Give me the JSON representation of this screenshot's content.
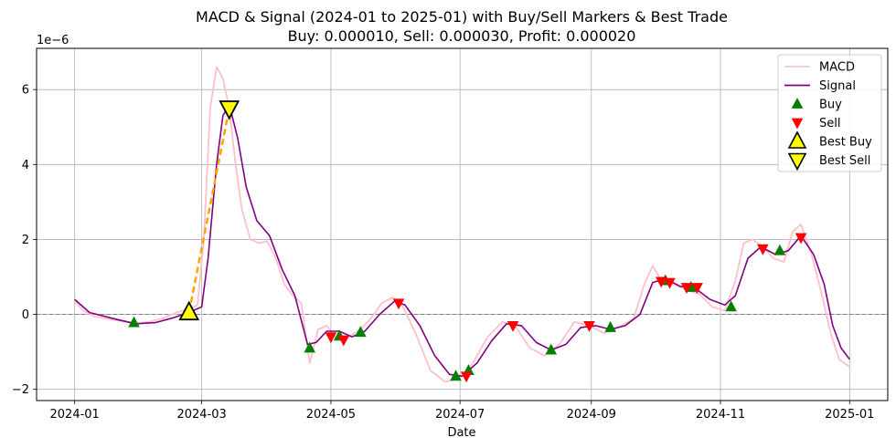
{
  "chart_data": {
    "type": "line",
    "title": "MACD & Signal (2024-01 to 2025-01) with Buy/Sell Markers & Best Trade",
    "subtitle": "Buy: 0.000010, Sell: 0.000030, Profit: 0.000020",
    "xlabel": "Date",
    "ylabel": "",
    "y_multiplier_label": "1e−6",
    "x_tick_labels": [
      "2024-01",
      "2024-03",
      "2024-05",
      "2024-07",
      "2024-09",
      "2024-11",
      "2025-01"
    ],
    "x_tick_dates": [
      "2024-01-01",
      "2024-03-01",
      "2024-05-01",
      "2024-07-01",
      "2024-09-01",
      "2024-11-01",
      "2025-01-01"
    ],
    "y_ticks": [
      -2,
      0,
      2,
      4,
      6
    ],
    "y_tick_labels": [
      "−2",
      "0",
      "2",
      "4",
      "6"
    ],
    "xlim": [
      "2023-12-14",
      "2025-01-19"
    ],
    "ylim": [
      -2.3,
      7.1
    ],
    "grid": true,
    "zero_line": 0,
    "legend_position": "top-right",
    "colors": {
      "macd": "#ffc0cb",
      "signal": "#800080",
      "buy": "#008000",
      "sell": "#ff0000",
      "best": "#ffff00",
      "best_line": "#ffa500",
      "grid": "#b0b0b0",
      "zero_line": "#808080"
    },
    "series": [
      {
        "name": "MACD",
        "points": [
          [
            "2024-01-01",
            0.35
          ],
          [
            "2024-01-05",
            0.1
          ],
          [
            "2024-01-10",
            -0.05
          ],
          [
            "2024-01-15",
            -0.1
          ],
          [
            "2024-01-20",
            -0.15
          ],
          [
            "2024-01-25",
            -0.2
          ],
          [
            "2024-01-30",
            -0.25
          ],
          [
            "2024-02-05",
            -0.2
          ],
          [
            "2024-02-12",
            -0.1
          ],
          [
            "2024-02-18",
            0.05
          ],
          [
            "2024-02-24",
            0.15
          ],
          [
            "2024-02-28",
            0.25
          ],
          [
            "2024-03-02",
            2.0
          ],
          [
            "2024-03-05",
            5.5
          ],
          [
            "2024-03-08",
            6.6
          ],
          [
            "2024-03-11",
            6.3
          ],
          [
            "2024-03-14",
            5.5
          ],
          [
            "2024-03-17",
            4.0
          ],
          [
            "2024-03-20",
            2.8
          ],
          [
            "2024-03-24",
            2.0
          ],
          [
            "2024-03-28",
            1.9
          ],
          [
            "2024-04-01",
            1.95
          ],
          [
            "2024-04-05",
            1.5
          ],
          [
            "2024-04-09",
            0.8
          ],
          [
            "2024-04-13",
            0.5
          ],
          [
            "2024-04-17",
            0.3
          ],
          [
            "2024-04-21",
            -1.3
          ],
          [
            "2024-04-25",
            -0.4
          ],
          [
            "2024-04-29",
            -0.3
          ],
          [
            "2024-05-03",
            -0.6
          ],
          [
            "2024-05-07",
            -0.7
          ],
          [
            "2024-05-11",
            -0.55
          ],
          [
            "2024-05-15",
            -0.4
          ],
          [
            "2024-05-20",
            -0.1
          ],
          [
            "2024-05-25",
            0.3
          ],
          [
            "2024-05-30",
            0.45
          ],
          [
            "2024-06-04",
            0.2
          ],
          [
            "2024-06-10",
            -0.5
          ],
          [
            "2024-06-17",
            -1.5
          ],
          [
            "2024-06-24",
            -1.8
          ],
          [
            "2024-07-01",
            -1.7
          ],
          [
            "2024-07-07",
            -1.3
          ],
          [
            "2024-07-14",
            -0.6
          ],
          [
            "2024-07-21",
            -0.2
          ],
          [
            "2024-07-27",
            -0.3
          ],
          [
            "2024-08-03",
            -0.9
          ],
          [
            "2024-08-10",
            -1.1
          ],
          [
            "2024-08-17",
            -0.8
          ],
          [
            "2024-08-24",
            -0.2
          ],
          [
            "2024-08-31",
            -0.3
          ],
          [
            "2024-09-07",
            -0.5
          ],
          [
            "2024-09-14",
            -0.35
          ],
          [
            "2024-09-21",
            -0.1
          ],
          [
            "2024-09-26",
            0.8
          ],
          [
            "2024-09-30",
            1.3
          ],
          [
            "2024-10-04",
            0.9
          ],
          [
            "2024-10-10",
            0.8
          ],
          [
            "2024-10-16",
            0.65
          ],
          [
            "2024-10-22",
            0.55
          ],
          [
            "2024-10-28",
            0.2
          ],
          [
            "2024-11-03",
            0.1
          ],
          [
            "2024-11-08",
            0.9
          ],
          [
            "2024-11-12",
            1.9
          ],
          [
            "2024-11-16",
            2.0
          ],
          [
            "2024-11-21",
            1.8
          ],
          [
            "2024-11-26",
            1.5
          ],
          [
            "2024-12-01",
            1.4
          ],
          [
            "2024-12-05",
            2.2
          ],
          [
            "2024-12-09",
            2.4
          ],
          [
            "2024-12-14",
            1.6
          ],
          [
            "2024-12-19",
            0.5
          ],
          [
            "2024-12-23",
            -0.5
          ],
          [
            "2024-12-27",
            -1.2
          ],
          [
            "2025-01-01",
            -1.4
          ]
        ]
      },
      {
        "name": "Signal",
        "points": [
          [
            "2024-01-01",
            0.4
          ],
          [
            "2024-01-08",
            0.05
          ],
          [
            "2024-01-15",
            -0.05
          ],
          [
            "2024-01-22",
            -0.15
          ],
          [
            "2024-01-30",
            -0.25
          ],
          [
            "2024-02-08",
            -0.22
          ],
          [
            "2024-02-16",
            -0.1
          ],
          [
            "2024-02-24",
            0.05
          ],
          [
            "2024-03-01",
            0.2
          ],
          [
            "2024-03-04",
            1.5
          ],
          [
            "2024-03-08",
            4.0
          ],
          [
            "2024-03-11",
            5.3
          ],
          [
            "2024-03-14",
            5.6
          ],
          [
            "2024-03-18",
            4.7
          ],
          [
            "2024-03-22",
            3.4
          ],
          [
            "2024-03-27",
            2.5
          ],
          [
            "2024-04-02",
            2.1
          ],
          [
            "2024-04-08",
            1.2
          ],
          [
            "2024-04-14",
            0.5
          ],
          [
            "2024-04-20",
            -0.8
          ],
          [
            "2024-04-24",
            -0.75
          ],
          [
            "2024-04-29",
            -0.45
          ],
          [
            "2024-05-05",
            -0.45
          ],
          [
            "2024-05-11",
            -0.6
          ],
          [
            "2024-05-17",
            -0.45
          ],
          [
            "2024-05-24",
            0.0
          ],
          [
            "2024-05-31",
            0.35
          ],
          [
            "2024-06-05",
            0.25
          ],
          [
            "2024-06-12",
            -0.3
          ],
          [
            "2024-06-19",
            -1.1
          ],
          [
            "2024-06-26",
            -1.6
          ],
          [
            "2024-07-02",
            -1.65
          ],
          [
            "2024-07-09",
            -1.3
          ],
          [
            "2024-07-16",
            -0.7
          ],
          [
            "2024-07-23",
            -0.25
          ],
          [
            "2024-07-30",
            -0.3
          ],
          [
            "2024-08-06",
            -0.75
          ],
          [
            "2024-08-13",
            -0.95
          ],
          [
            "2024-08-20",
            -0.8
          ],
          [
            "2024-08-27",
            -0.35
          ],
          [
            "2024-09-03",
            -0.3
          ],
          [
            "2024-09-10",
            -0.4
          ],
          [
            "2024-09-17",
            -0.3
          ],
          [
            "2024-09-24",
            0.0
          ],
          [
            "2024-09-30",
            0.85
          ],
          [
            "2024-10-06",
            0.95
          ],
          [
            "2024-10-13",
            0.75
          ],
          [
            "2024-10-20",
            0.7
          ],
          [
            "2024-10-27",
            0.4
          ],
          [
            "2024-11-03",
            0.25
          ],
          [
            "2024-11-08",
            0.5
          ],
          [
            "2024-11-14",
            1.5
          ],
          [
            "2024-11-20",
            1.8
          ],
          [
            "2024-11-27",
            1.6
          ],
          [
            "2024-12-03",
            1.7
          ],
          [
            "2024-12-09",
            2.1
          ],
          [
            "2024-12-15",
            1.6
          ],
          [
            "2024-12-20",
            0.8
          ],
          [
            "2024-12-24",
            -0.3
          ],
          [
            "2024-12-28",
            -0.9
          ],
          [
            "2025-01-01",
            -1.2
          ]
        ]
      }
    ],
    "buy_markers": [
      [
        "2024-01-29",
        -0.22
      ],
      [
        "2024-02-25",
        0.05
      ],
      [
        "2024-04-21",
        -0.9
      ],
      [
        "2024-05-05",
        -0.58
      ],
      [
        "2024-05-15",
        -0.48
      ],
      [
        "2024-06-29",
        -1.65
      ],
      [
        "2024-07-05",
        -1.5
      ],
      [
        "2024-08-13",
        -0.95
      ],
      [
        "2024-09-10",
        -0.35
      ],
      [
        "2024-10-06",
        0.9
      ],
      [
        "2024-10-18",
        0.72
      ],
      [
        "2024-11-06",
        0.2
      ],
      [
        "2024-11-29",
        1.7
      ]
    ],
    "sell_markers": [
      [
        "2024-05-01",
        -0.6
      ],
      [
        "2024-05-07",
        -0.68
      ],
      [
        "2024-06-02",
        0.3
      ],
      [
        "2024-07-04",
        -1.65
      ],
      [
        "2024-07-26",
        -0.3
      ],
      [
        "2024-08-31",
        -0.3
      ],
      [
        "2024-10-04",
        0.88
      ],
      [
        "2024-10-08",
        0.85
      ],
      [
        "2024-10-16",
        0.72
      ],
      [
        "2024-10-21",
        0.72
      ],
      [
        "2024-11-21",
        1.75
      ],
      [
        "2024-12-09",
        2.05
      ]
    ],
    "best_buy": [
      "2024-02-24",
      0.05
    ],
    "best_sell": [
      "2024-03-14",
      5.5
    ],
    "legend": [
      {
        "label": "MACD",
        "kind": "line",
        "color_key": "macd"
      },
      {
        "label": "Signal",
        "kind": "line",
        "color_key": "signal"
      },
      {
        "label": "Buy",
        "kind": "tri-up",
        "color_key": "buy"
      },
      {
        "label": "Sell",
        "kind": "tri-down",
        "color_key": "sell"
      },
      {
        "label": "Best Buy",
        "kind": "best-up",
        "color_key": "best"
      },
      {
        "label": "Best Sell",
        "kind": "best-down",
        "color_key": "best"
      }
    ]
  }
}
